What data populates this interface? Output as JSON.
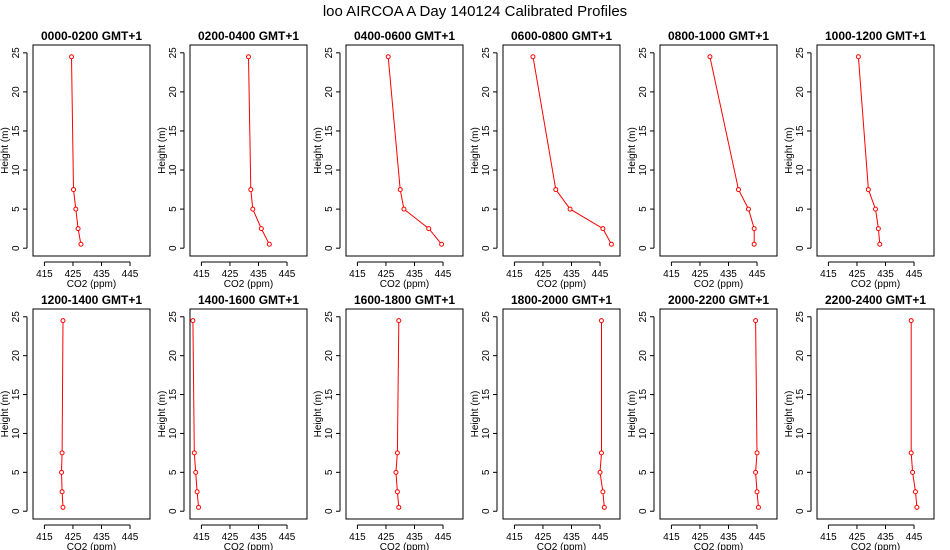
{
  "title": "loo AIRCOA A  Day 140124  Calibrated Profiles",
  "chart_data": {
    "type": "line",
    "xlabel": "CO2 (ppm)",
    "ylabel": "Height (m)",
    "xlim": [
      411,
      452
    ],
    "ylim": [
      -1,
      26
    ],
    "xticks": [
      415,
      425,
      435,
      445
    ],
    "yticks": [
      0,
      5,
      10,
      15,
      20,
      25
    ],
    "series_color": "#ff0000",
    "heights": [
      24.5,
      7.5,
      5.0,
      2.5,
      0.5
    ],
    "panels": [
      {
        "title": "0000-0200 GMT+1",
        "co2": [
          424.5,
          425.2,
          426.0,
          426.8,
          427.8
        ]
      },
      {
        "title": "0200-0400 GMT+1",
        "co2": [
          431.5,
          432.3,
          433.0,
          436.0,
          438.8
        ]
      },
      {
        "title": "0400-0600 GMT+1",
        "co2": [
          425.8,
          430.0,
          431.3,
          440.0,
          444.5
        ]
      },
      {
        "title": "0600-0800 GMT+1",
        "co2": [
          421.5,
          429.5,
          434.5,
          446.0,
          449.0
        ]
      },
      {
        "title": "0800-1000 GMT+1",
        "co2": [
          428.5,
          438.5,
          442.0,
          444.0,
          444.0
        ]
      },
      {
        "title": "1000-1200 GMT+1",
        "co2": [
          425.5,
          429.0,
          431.5,
          432.5,
          433.0
        ]
      },
      {
        "title": "1200-1400 GMT+1",
        "co2": [
          421.5,
          421.2,
          421.0,
          421.2,
          421.5
        ]
      },
      {
        "title": "1400-1600 GMT+1",
        "co2": [
          412.0,
          412.5,
          413.0,
          413.5,
          414.0
        ]
      },
      {
        "title": "1600-1800 GMT+1",
        "co2": [
          429.5,
          429.0,
          428.5,
          429.0,
          429.5
        ]
      },
      {
        "title": "1800-2000 GMT+1",
        "co2": [
          445.5,
          445.5,
          445.0,
          446.0,
          446.5
        ]
      },
      {
        "title": "2000-2200 GMT+1",
        "co2": [
          444.5,
          445.0,
          444.5,
          445.0,
          445.5
        ]
      },
      {
        "title": "2200-2400 GMT+1",
        "co2": [
          444.0,
          444.0,
          444.5,
          445.5,
          446.0
        ]
      }
    ]
  }
}
